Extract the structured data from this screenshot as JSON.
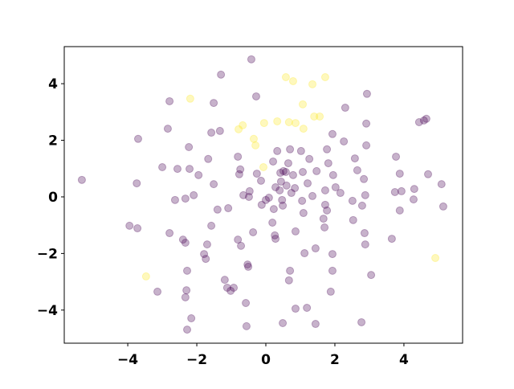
{
  "chart_data": {
    "type": "scatter",
    "xlim": [
      -5.84,
      5.7
    ],
    "ylim": [
      -5.17,
      5.31
    ],
    "xticks": [
      {
        "value": -4,
        "label": "−4"
      },
      {
        "value": -2,
        "label": "−2"
      },
      0,
      2,
      4
    ],
    "yticks": [
      {
        "value": -4,
        "label": "−4"
      },
      {
        "value": -2,
        "label": "−2"
      },
      0,
      2,
      4
    ],
    "alpha": 0.3,
    "series": [
      {
        "color": "#440154",
        "x": [
          -5.33,
          -0.42,
          -0.28,
          -1.3,
          -1.51,
          -2.79,
          -2.84,
          -3.7,
          -2.23,
          -1.58,
          -1.33,
          -0.81,
          -1.67,
          -2.21,
          -3.0,
          -2.56,
          -3.74,
          -2.63,
          -2.33,
          -2.09,
          -1.95,
          -1.51,
          -1.4,
          -1.09,
          -1.58,
          -2.79,
          -3.95,
          -3.72,
          -2.4,
          -2.33,
          -1.7,
          -1.79,
          -1.74,
          -0.81,
          -0.72,
          -2.28,
          -2.3,
          -2.33,
          -3.14,
          -2.16,
          -2.28,
          -1.19,
          -1.12,
          -1.02,
          -0.93,
          -0.58,
          -0.56,
          -0.51,
          -0.77,
          -0.74,
          -0.65,
          -0.49,
          -0.26,
          -0.14,
          0.0,
          0.09,
          0.28,
          0.33,
          0.21,
          0.4,
          0.42,
          0.51,
          0.58,
          0.44,
          0.6,
          0.65,
          0.7,
          0.79,
          0.84,
          1.02,
          1.07,
          1.26,
          1.21,
          1.47,
          1.05,
          1.09,
          0.74,
          0.47,
          0.49,
          0.23,
          0.19,
          0.26,
          0.28,
          0.7,
          0.67,
          0.86,
          1.12,
          1.44,
          1.7,
          1.77,
          1.67,
          1.72,
          1.72,
          2.02,
          2.16,
          1.95,
          1.81,
          1.77,
          1.93,
          2.26,
          2.3,
          2.58,
          2.51,
          2.53,
          2.65,
          2.91,
          2.91,
          2.93,
          2.84,
          2.88,
          2.79,
          2.86,
          2.88,
          3.05,
          1.93,
          1.93,
          1.88,
          1.19,
          0.86,
          1.44,
          0.49,
          -0.12,
          -0.37,
          -0.53,
          1.35,
          -0.47,
          3.77,
          3.88,
          3.74,
          3.93,
          3.88,
          4.28,
          4.3,
          4.7,
          5.09,
          5.14,
          3.65,
          4.44,
          4.58,
          4.65,
          2.77
        ],
        "values": [
          0.6,
          4.86,
          3.55,
          4.32,
          3.32,
          3.38,
          2.41,
          2.05,
          1.76,
          2.27,
          2.33,
          1.42,
          1.34,
          0.99,
          1.05,
          0.99,
          0.48,
          -0.11,
          -0.06,
          0.06,
          0.77,
          0.45,
          -0.45,
          -0.4,
          -1.02,
          -1.28,
          -1.02,
          -1.11,
          -1.51,
          -1.62,
          -1.68,
          -2.02,
          -2.19,
          -1.51,
          -1.73,
          -2.61,
          -3.3,
          -3.55,
          -3.35,
          -4.29,
          -4.69,
          -2.93,
          -3.21,
          -3.32,
          -3.21,
          -3.75,
          -4.57,
          -2.47,
          0.8,
          0.97,
          0.06,
          0.0,
          0.82,
          0.57,
          -0.11,
          -0.03,
          0.34,
          1.62,
          1.25,
          0.23,
          0.85,
          0.91,
          0.88,
          0.54,
          0.4,
          1.19,
          1.68,
          0.77,
          0.31,
          1.62,
          0.88,
          1.34,
          0.48,
          0.91,
          -0.14,
          -0.57,
          0.14,
          -0.11,
          -0.31,
          -0.43,
          -0.91,
          -1.36,
          -1.48,
          -2.61,
          -2.95,
          -1.22,
          -1.99,
          -1.82,
          -1.08,
          -0.48,
          -0.77,
          -0.28,
          0.23,
          0.34,
          0.14,
          0.77,
          1.19,
          1.68,
          2.22,
          1.96,
          3.15,
          1.36,
          -0.14,
          -0.82,
          0.94,
          2.59,
          1.82,
          3.64,
          0.63,
          0.06,
          -0.31,
          -1.28,
          -1.68,
          -2.76,
          -2.02,
          -2.61,
          -3.35,
          -3.92,
          -3.95,
          -4.49,
          -4.46,
          -0.28,
          -1.25,
          -2.39,
          0.03,
          0.2,
          1.42,
          0.82,
          0.17,
          0.2,
          -0.48,
          -0.09,
          0.28,
          0.8,
          0.45,
          -0.34,
          -1.48,
          2.64,
          2.7,
          2.76,
          -4.43
        ]
      },
      {
        "color": "#fde725",
        "x": [
          -2.19,
          -0.67,
          -0.79,
          -0.35,
          -0.3,
          -0.07,
          -0.05,
          0.33,
          0.58,
          0.79,
          0.67,
          0.86,
          1.07,
          1.09,
          1.35,
          1.4,
          1.56,
          1.72,
          -3.47,
          4.91
        ],
        "values": [
          3.47,
          2.53,
          2.39,
          2.05,
          1.82,
          1.05,
          2.61,
          2.67,
          4.23,
          4.09,
          2.64,
          2.61,
          3.27,
          2.41,
          3.98,
          2.84,
          2.84,
          4.23,
          -2.81,
          -2.16
        ]
      }
    ]
  }
}
